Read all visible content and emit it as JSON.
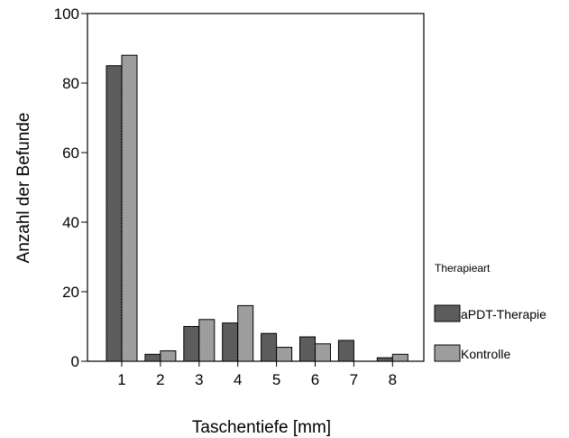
{
  "chart_data": {
    "type": "bar",
    "title": "",
    "xlabel": "Taschentiefe [mm]",
    "ylabel": "Anzahl der Befunde",
    "categories": [
      "1",
      "2",
      "3",
      "4",
      "5",
      "6",
      "7",
      "8"
    ],
    "series": [
      {
        "name": "aPDT-Therapie",
        "values": [
          85,
          2,
          10,
          11,
          8,
          7,
          6,
          1
        ],
        "color": "#7a7a7a"
      },
      {
        "name": "Kontrolle",
        "values": [
          88,
          3,
          12,
          16,
          4,
          5,
          0,
          2
        ],
        "color": "#a9a9a9"
      }
    ],
    "ylim": [
      0,
      100
    ],
    "yticks": [
      "0",
      "20",
      "40",
      "60",
      "80",
      "100"
    ],
    "grid": false,
    "legend": {
      "title": "Therapieart",
      "placement": "right"
    }
  }
}
